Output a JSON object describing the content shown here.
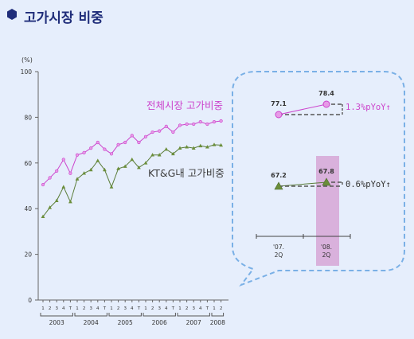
{
  "slide": {
    "title": "고가시장 비중"
  },
  "colors": {
    "title": "#1f2d7a",
    "total_series": "#cc44cc",
    "ktg_series": "#5b7d3a",
    "callout_border": "#7ab0e6",
    "highlight": "#d6a6d6",
    "background": "#e6eefc"
  },
  "icons": {
    "bullet": "hexagon-bullet-icon"
  },
  "chart_data": [
    {
      "type": "line",
      "title": "",
      "ylabel": "(%)",
      "ylim": [
        0,
        100
      ],
      "yticks": [
        0,
        20,
        40,
        60,
        80,
        100
      ],
      "grid": false,
      "quarter_labels": [
        "1",
        "2",
        "3",
        "4",
        "T",
        "1",
        "2",
        "3",
        "4",
        "T",
        "1",
        "2",
        "3",
        "4",
        "T",
        "1",
        "2",
        "3",
        "4",
        "T",
        "1",
        "2",
        "3",
        "4",
        "T",
        "1",
        "2"
      ],
      "year_groups": [
        {
          "label": "2003",
          "count": 5
        },
        {
          "label": "2004",
          "count": 5
        },
        {
          "label": "2005",
          "count": 5
        },
        {
          "label": "2006",
          "count": 5
        },
        {
          "label": "2007",
          "count": 5
        },
        {
          "label": "2008",
          "count": 2
        }
      ],
      "series": [
        {
          "name": "전체시장 고가비중",
          "marker": "circle",
          "values": [
            50.5,
            53.5,
            56.5,
            61.5,
            55.5,
            63.5,
            64.5,
            66.5,
            69,
            66,
            64,
            68,
            69,
            72,
            69,
            71.5,
            73.5,
            74,
            76,
            73.5,
            76.5,
            77,
            77,
            78,
            77,
            78,
            78.4
          ]
        },
        {
          "name": "KT&G내 고가비중",
          "marker": "triangle",
          "values": [
            36.5,
            40.5,
            43.5,
            49.5,
            43,
            53,
            55.5,
            57,
            61,
            57,
            49.5,
            57.5,
            58.5,
            61.5,
            58,
            60,
            63.5,
            63.5,
            66,
            64,
            66.5,
            67,
            66.5,
            67.5,
            67,
            68,
            67.8
          ]
        }
      ]
    },
    {
      "type": "line",
      "categories": [
        "'07.\n2Q",
        "'08.\n2Q"
      ],
      "category_lines": [
        [
          "'07.",
          "2Q"
        ],
        [
          "'08.",
          "2Q"
        ]
      ],
      "highlight_category": 1,
      "series": [
        {
          "name": "전체시장 고가비중",
          "values": [
            77.1,
            78.4
          ],
          "value_labels": [
            "77.1",
            "78.4"
          ],
          "change_label": "1.3%pYoY↑"
        },
        {
          "name": "KT&G내 고가비중",
          "values": [
            67.2,
            67.8
          ],
          "value_labels": [
            "67.2",
            "67.8"
          ],
          "change_label": "0.6%pYoY↑"
        }
      ]
    }
  ]
}
